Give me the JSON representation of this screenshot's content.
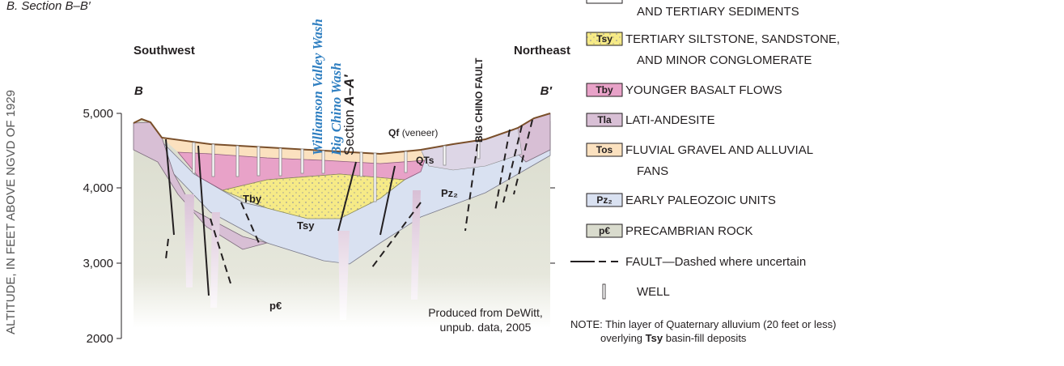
{
  "header": {
    "title": "B. Section B–B′"
  },
  "axis": {
    "label": "ALTITUDE, IN FEET ABOVE NGVD OF 1929",
    "ticks": [
      "5,000",
      "4,000",
      "3,000",
      "2000"
    ]
  },
  "section": {
    "left_direction": "Southwest",
    "right_direction": "Northeast",
    "left_end": "B",
    "right_end": "B′",
    "streams": [
      "Williamson Valley Wash",
      "Big Chino Wash"
    ],
    "section_label": {
      "prefix": "Section",
      "name": "A–A′"
    },
    "fault_label": "BIG CHINO FAULT",
    "veneer": {
      "code": "Qf",
      "note": "(veneer)"
    },
    "units": {
      "tby": "Tby",
      "tsy": "Tsy",
      "pz": "Pz₂",
      "pc": "p€",
      "qts": "QTs"
    },
    "credit": [
      "Produced from DeWitt,",
      "unpub. data, 2005"
    ]
  },
  "legend": {
    "items": [
      {
        "lines": [
          "AND TERTIARY SEDIMENTS"
        ]
      },
      {
        "code": "Tsy",
        "lines": [
          "TERTIARY SILTSTONE, SANDSTONE,",
          "AND MINOR CONGLOMERATE"
        ]
      },
      {
        "code": "Tby",
        "lines": [
          "YOUNGER BASALT FLOWS"
        ]
      },
      {
        "code": "Tla",
        "lines": [
          "LATI-ANDESITE"
        ]
      },
      {
        "code": "Tos",
        "lines": [
          "FLUVIAL GRAVEL AND ALLUVIAL",
          "FANS"
        ]
      },
      {
        "code": "Pz₂",
        "lines": [
          "EARLY PALEOZOIC UNITS"
        ]
      },
      {
        "code": "p€",
        "lines": [
          "PRECAMBRIAN ROCK"
        ]
      },
      {
        "lines": [
          "FAULT—Dashed where uncertain"
        ]
      },
      {
        "lines": [
          "WELL"
        ]
      }
    ],
    "note": {
      "line1": "NOTE: Thin layer of Quaternary alluvium (20 feet or less)",
      "line2": [
        "overlying",
        "Tsy",
        "basin-fill deposits"
      ]
    }
  }
}
